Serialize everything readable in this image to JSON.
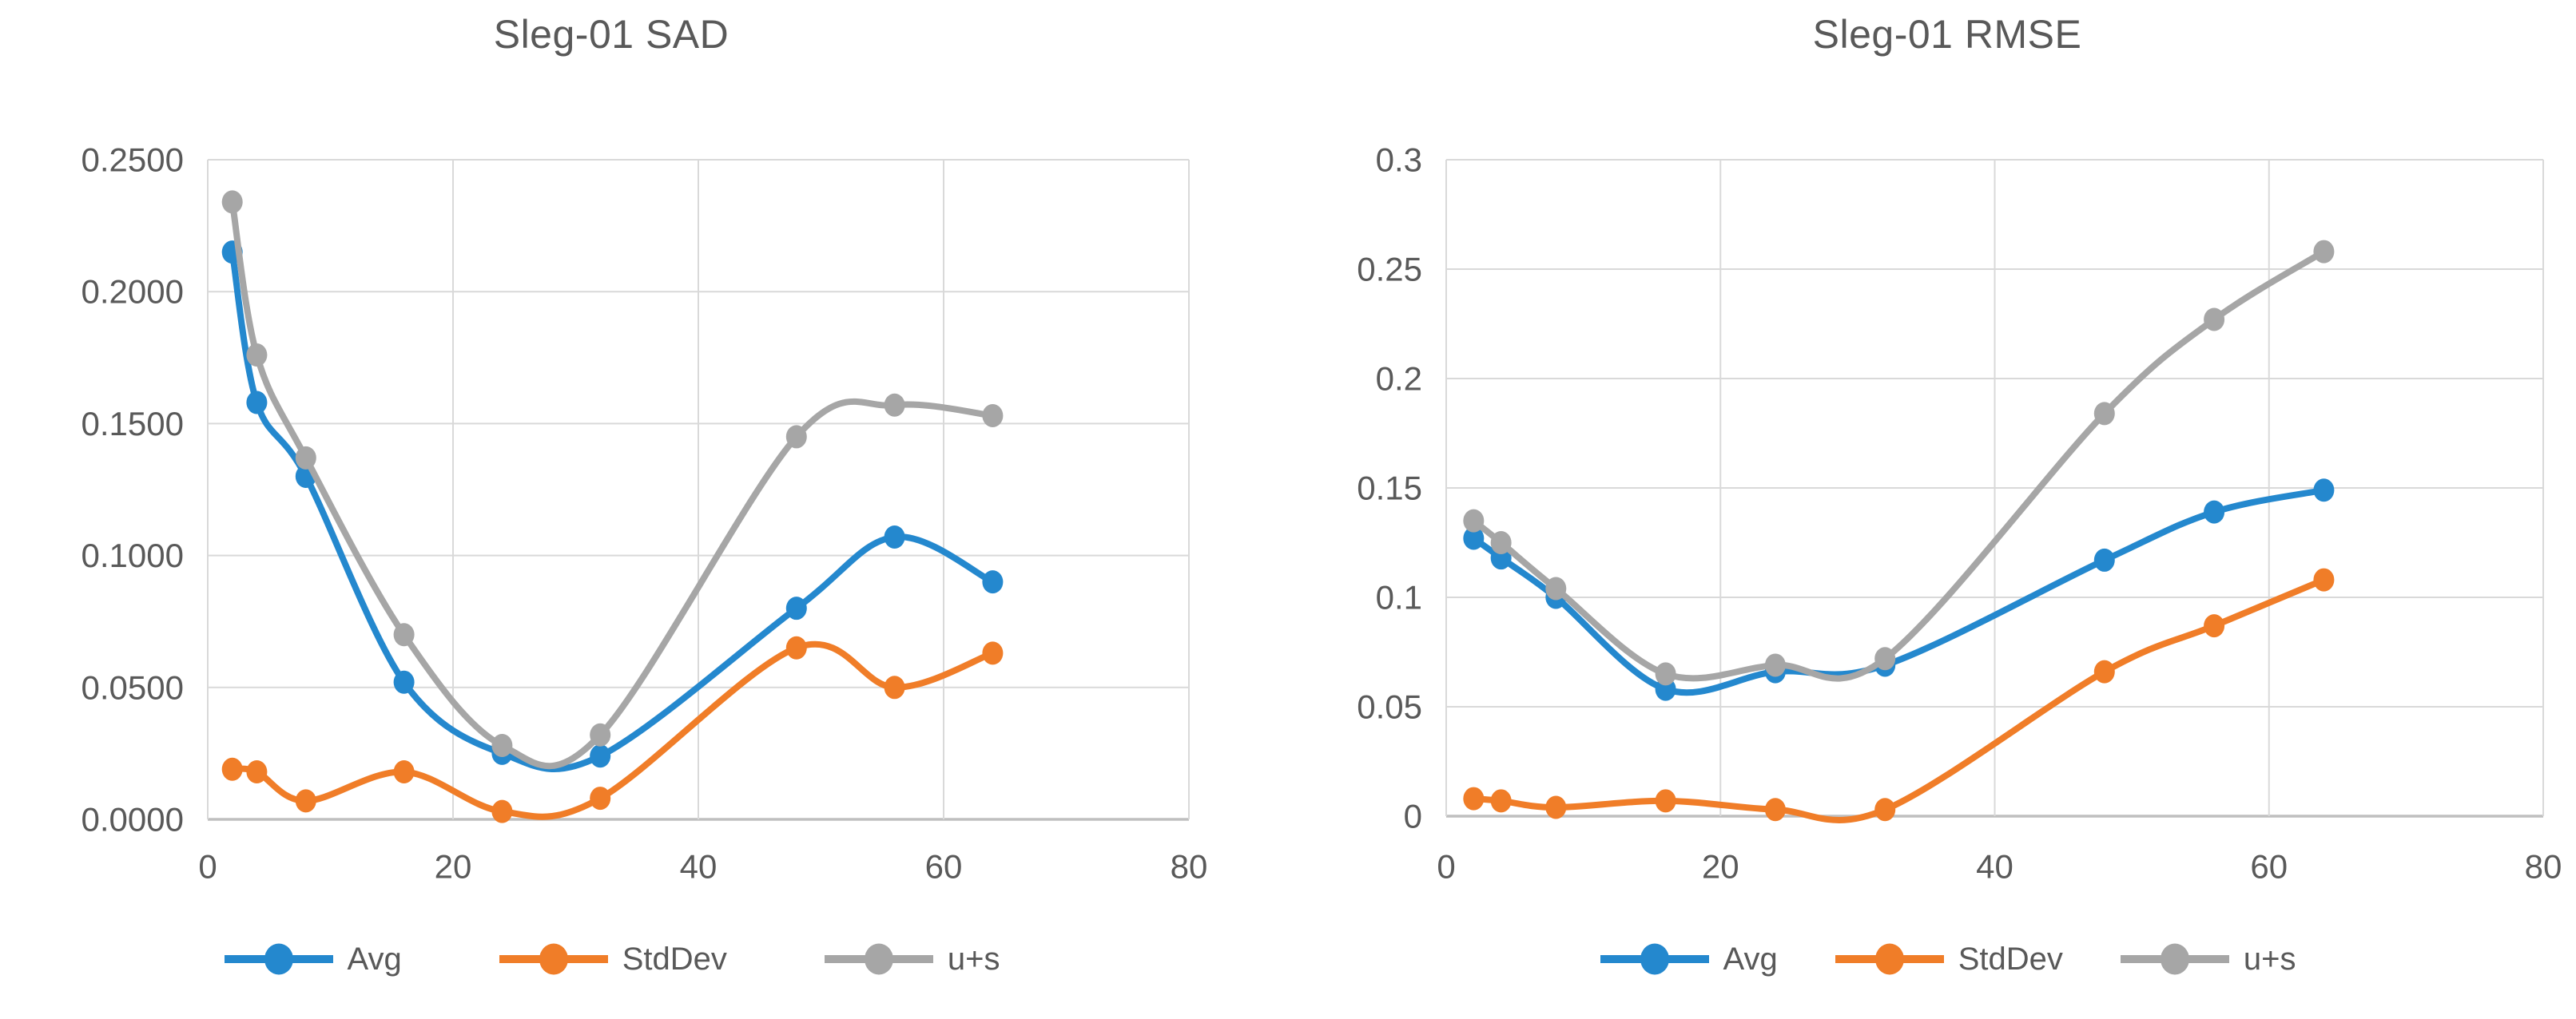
{
  "figure": {
    "background": "#FFFFFF",
    "text_color": "#595959",
    "grid_color": "#D9D9D9",
    "axis_color": "#BFBFBF"
  },
  "chart_data": [
    {
      "type": "line",
      "title": "Sleg-01 SAD",
      "x": [
        2,
        4,
        8,
        16,
        24,
        32,
        48,
        56,
        64
      ],
      "series": [
        {
          "name": "Avg",
          "color": "#2488CE",
          "values": [
            0.215,
            0.158,
            0.13,
            0.052,
            0.025,
            0.024,
            0.08,
            0.107,
            0.09
          ]
        },
        {
          "name": "StdDev",
          "color": "#F07D28",
          "values": [
            0.019,
            0.018,
            0.007,
            0.018,
            0.003,
            0.008,
            0.065,
            0.05,
            0.063
          ]
        },
        {
          "name": "u+s",
          "color": "#A6A6A6",
          "values": [
            0.234,
            0.176,
            0.137,
            0.07,
            0.028,
            0.032,
            0.145,
            0.157,
            0.153
          ]
        }
      ],
      "xlim": [
        0,
        80
      ],
      "ylim": [
        0,
        0.25
      ],
      "xticks": [
        0,
        20,
        40,
        60,
        80
      ],
      "xtick_labels": [
        "0",
        "20",
        "40",
        "60",
        "80"
      ],
      "yticks": [
        0,
        0.05,
        0.1,
        0.15,
        0.2,
        0.25
      ],
      "ytick_labels": [
        "0.0000",
        "0.0500",
        "0.1000",
        "0.1500",
        "0.2000",
        "0.2500"
      ],
      "grid": true,
      "smooth_lines": true,
      "legend_position": "bottom"
    },
    {
      "type": "line",
      "title": "Sleg-01 RMSE",
      "x": [
        2,
        4,
        8,
        16,
        24,
        32,
        48,
        56,
        64
      ],
      "series": [
        {
          "name": "Avg",
          "color": "#2488CE",
          "values": [
            0.127,
            0.118,
            0.1,
            0.058,
            0.066,
            0.069,
            0.117,
            0.139,
            0.149
          ]
        },
        {
          "name": "StdDev",
          "color": "#F07D28",
          "values": [
            0.008,
            0.007,
            0.004,
            0.007,
            0.003,
            0.003,
            0.066,
            0.087,
            0.108
          ]
        },
        {
          "name": "u+s",
          "color": "#A6A6A6",
          "values": [
            0.135,
            0.125,
            0.104,
            0.065,
            0.069,
            0.072,
            0.184,
            0.227,
            0.258
          ]
        }
      ],
      "xlim": [
        0,
        80
      ],
      "ylim": [
        0,
        0.3
      ],
      "xticks": [
        0,
        20,
        40,
        60,
        80
      ],
      "xtick_labels": [
        "0",
        "20",
        "40",
        "60",
        "80"
      ],
      "yticks": [
        0,
        0.05,
        0.1,
        0.15,
        0.2,
        0.25,
        0.3
      ],
      "ytick_labels": [
        "0",
        "0.05",
        "0.1",
        "0.15",
        "0.2",
        "0.25",
        "0.3"
      ],
      "grid": true,
      "smooth_lines": true,
      "legend_position": "bottom"
    }
  ]
}
